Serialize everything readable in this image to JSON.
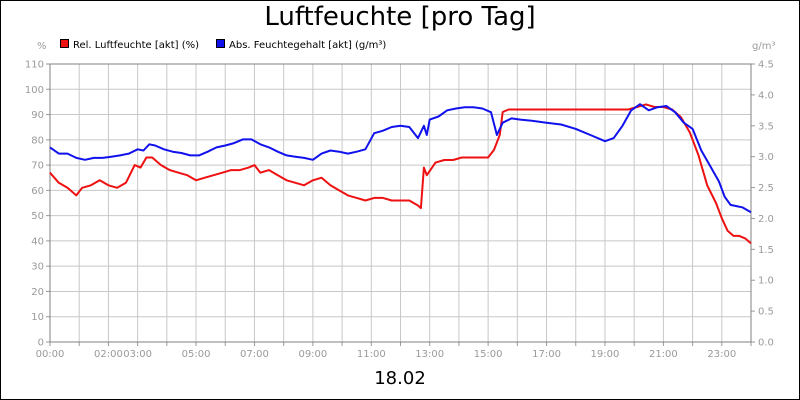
{
  "chart_data": {
    "type": "line",
    "title": "Luftfeuchte [pro Tag]",
    "subtitle": "18.02",
    "left_axis": {
      "unit": "%",
      "ylim": [
        0,
        110
      ],
      "ticks": [
        "0",
        "10",
        "20",
        "30",
        "40",
        "50",
        "60",
        "70",
        "80",
        "90",
        "100",
        "110"
      ]
    },
    "right_axis": {
      "unit": "g/m³",
      "ylim": [
        0,
        4.5
      ],
      "ticks": [
        "0.0",
        "0.5",
        "1.0",
        "1.5",
        "2.0",
        "2.5",
        "3.0",
        "3.5",
        "4.0",
        "4.5"
      ]
    },
    "x_axis": {
      "xlim": [
        0,
        24
      ],
      "ticks": [
        {
          "h": 0,
          "label": "00:00"
        },
        {
          "h": 2,
          "label": "02:00"
        },
        {
          "h": 3,
          "label": "03:00"
        },
        {
          "h": 5,
          "label": "05:00"
        },
        {
          "h": 7,
          "label": "07:00"
        },
        {
          "h": 9,
          "label": "09:00"
        },
        {
          "h": 11,
          "label": "11:00"
        },
        {
          "h": 13,
          "label": "13:00"
        },
        {
          "h": 15,
          "label": "15:00"
        },
        {
          "h": 17,
          "label": "17:00"
        },
        {
          "h": 19,
          "label": "19:00"
        },
        {
          "h": 21,
          "label": "21:00"
        },
        {
          "h": 23,
          "label": "23:00"
        }
      ]
    },
    "grid": true,
    "legend_position": "top-left",
    "series": [
      {
        "name": "Rel. Luftfeuchte [akt] (%)",
        "color": "#ee1111",
        "axis": "left",
        "x": [
          0,
          0.3,
          0.6,
          0.9,
          1.1,
          1.4,
          1.7,
          2.0,
          2.3,
          2.6,
          2.9,
          3.1,
          3.3,
          3.5,
          3.8,
          4.1,
          4.4,
          4.7,
          5.0,
          5.3,
          5.6,
          5.9,
          6.2,
          6.5,
          6.8,
          7.0,
          7.2,
          7.5,
          7.8,
          8.1,
          8.4,
          8.7,
          9.0,
          9.3,
          9.6,
          9.9,
          10.2,
          10.5,
          10.8,
          11.1,
          11.4,
          11.7,
          12.0,
          12.3,
          12.6,
          12.7,
          12.8,
          12.9,
          13.2,
          13.5,
          13.8,
          14.1,
          14.4,
          14.7,
          15.0,
          15.2,
          15.4,
          15.5,
          15.7,
          16.0,
          16.5,
          17.0,
          17.5,
          18.0,
          18.5,
          19.0,
          19.5,
          19.8,
          20.1,
          20.4,
          20.7,
          21.0,
          21.3,
          21.6,
          21.9,
          22.2,
          22.5,
          22.8,
          23.0,
          23.2,
          23.4,
          23.6,
          23.8,
          24.0
        ],
        "y": [
          67,
          63,
          61,
          58,
          61,
          62,
          64,
          62,
          61,
          63,
          70,
          69,
          73,
          73,
          70,
          68,
          67,
          66,
          64,
          65,
          66,
          67,
          68,
          68,
          69,
          70,
          67,
          68,
          66,
          64,
          63,
          62,
          64,
          65,
          62,
          60,
          58,
          57,
          56,
          57,
          57,
          56,
          56,
          56,
          54,
          53,
          69,
          66,
          71,
          72,
          72,
          73,
          73,
          73,
          73,
          76,
          82,
          91,
          92,
          92,
          92,
          92,
          92,
          92,
          92,
          92,
          92,
          92,
          93,
          94,
          93,
          93,
          92,
          89,
          83,
          74,
          62,
          55,
          49,
          44,
          42,
          42,
          41,
          39
        ]
      },
      {
        "name": "Abs. Feuchtegehalt [akt] (g/m³)",
        "color": "#1111ee",
        "axis": "right",
        "x": [
          0,
          0.3,
          0.6,
          0.9,
          1.2,
          1.5,
          1.8,
          2.1,
          2.4,
          2.7,
          3.0,
          3.2,
          3.4,
          3.6,
          3.9,
          4.2,
          4.5,
          4.8,
          5.1,
          5.4,
          5.7,
          6.0,
          6.3,
          6.6,
          6.9,
          7.2,
          7.5,
          7.8,
          8.1,
          8.4,
          8.7,
          9.0,
          9.3,
          9.6,
          9.9,
          10.2,
          10.5,
          10.8,
          11.1,
          11.4,
          11.7,
          12.0,
          12.3,
          12.6,
          12.8,
          12.9,
          13.0,
          13.3,
          13.6,
          13.9,
          14.2,
          14.5,
          14.8,
          15.1,
          15.3,
          15.5,
          15.8,
          16.1,
          16.5,
          17.0,
          17.5,
          18.0,
          18.5,
          19.0,
          19.3,
          19.6,
          19.9,
          20.2,
          20.5,
          20.8,
          21.1,
          21.4,
          21.7,
          22.0,
          22.3,
          22.6,
          22.9,
          23.1,
          23.3,
          23.5,
          23.7,
          24.0
        ],
        "y": [
          3.15,
          3.05,
          3.05,
          2.98,
          2.95,
          2.98,
          2.98,
          3.0,
          3.02,
          3.05,
          3.12,
          3.1,
          3.2,
          3.18,
          3.12,
          3.08,
          3.06,
          3.02,
          3.02,
          3.08,
          3.15,
          3.18,
          3.22,
          3.28,
          3.28,
          3.2,
          3.15,
          3.08,
          3.02,
          3.0,
          2.98,
          2.95,
          3.05,
          3.1,
          3.08,
          3.05,
          3.08,
          3.12,
          3.38,
          3.42,
          3.48,
          3.5,
          3.48,
          3.3,
          3.5,
          3.35,
          3.6,
          3.65,
          3.75,
          3.78,
          3.8,
          3.8,
          3.78,
          3.72,
          3.35,
          3.55,
          3.62,
          3.6,
          3.58,
          3.55,
          3.52,
          3.45,
          3.35,
          3.25,
          3.3,
          3.5,
          3.75,
          3.85,
          3.75,
          3.8,
          3.82,
          3.72,
          3.55,
          3.45,
          3.1,
          2.85,
          2.6,
          2.35,
          2.22,
          2.2,
          2.18,
          2.1
        ]
      }
    ]
  }
}
